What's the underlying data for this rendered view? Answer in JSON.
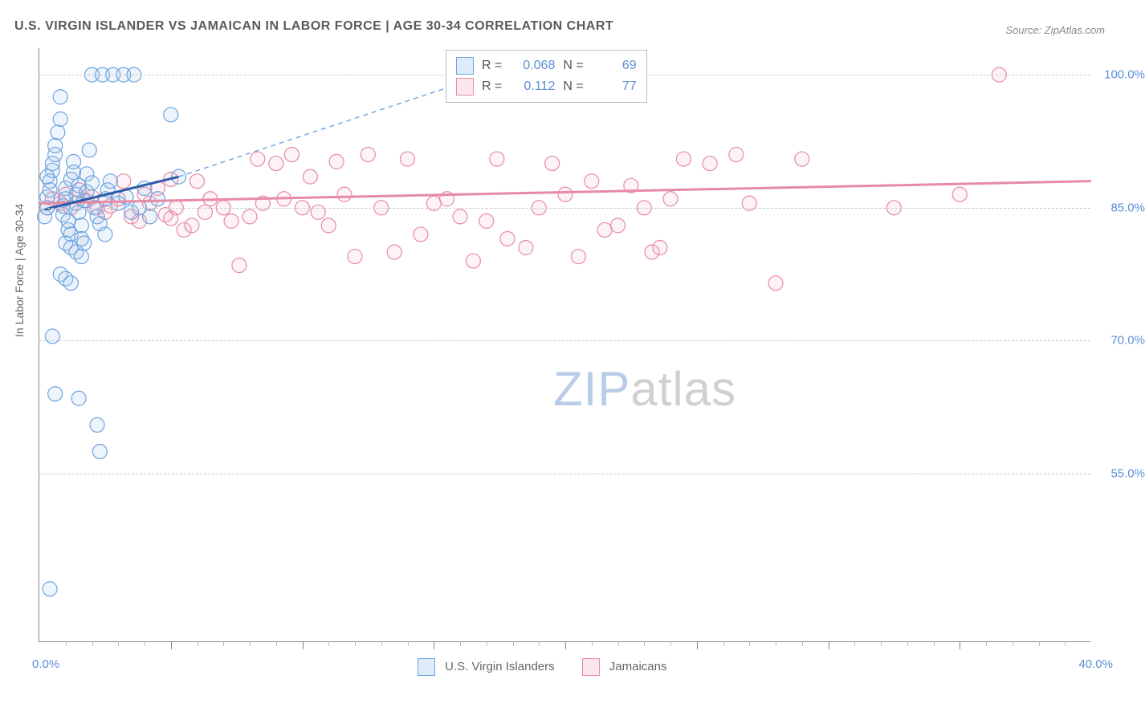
{
  "title": "U.S. VIRGIN ISLANDER VS JAMAICAN IN LABOR FORCE | AGE 30-34 CORRELATION CHART",
  "source": "Source: ZipAtlas.com",
  "ylabel": "In Labor Force | Age 30-34",
  "watermark_a": "ZIP",
  "watermark_b": "atlas",
  "chart": {
    "type": "scatter-correlation",
    "xlim": [
      0.0,
      40.0
    ],
    "ylim": [
      36.0,
      103.0
    ],
    "xlabel_min": "0.0%",
    "xlabel_max": "40.0%",
    "yticks": [
      55.0,
      70.0,
      85.0,
      100.0
    ],
    "ytick_labels": [
      "55.0%",
      "70.0%",
      "85.0%",
      "100.0%"
    ],
    "xticks_major": [
      5,
      10,
      15,
      20,
      25,
      30,
      35
    ],
    "xticks_minor": [
      1,
      2,
      3,
      4,
      6,
      7,
      8,
      9,
      11,
      12,
      13,
      14,
      16,
      17,
      18,
      19,
      21,
      22,
      23,
      24,
      26,
      27,
      28,
      29,
      31,
      32,
      33,
      34,
      36,
      37,
      38,
      39
    ],
    "background_color": "#ffffff",
    "grid_color": "#cccccc",
    "axis_color": "#888888",
    "text_color": "#666666",
    "tick_label_color": "#5b8fd6",
    "marker_radius": 9,
    "marker_stroke_width": 1.2,
    "marker_fill_opacity": 0.18,
    "trend_line_width": 3,
    "trend_dash_width": 1.4
  },
  "series": {
    "usvi": {
      "label": "U.S. Virgin Islanders",
      "color_stroke": "#6ea3e0",
      "color_fill": "#9dc2ea",
      "r_label": "R =",
      "r_value": "0.068",
      "n_label": "N =",
      "n_value": "69",
      "trend_solid": {
        "x1": 0.2,
        "y1": 84.8,
        "x2": 5.3,
        "y2": 88.5
      },
      "trend_dash": {
        "x1": 5.3,
        "y1": 88.5,
        "x2": 17.0,
        "y2": 100.0
      },
      "points": [
        [
          0.2,
          84.0
        ],
        [
          0.3,
          85.0
        ],
        [
          0.3,
          86.2
        ],
        [
          0.4,
          87.0
        ],
        [
          0.4,
          88.0
        ],
        [
          0.5,
          89.2
        ],
        [
          0.5,
          90.0
        ],
        [
          0.6,
          91.0
        ],
        [
          0.6,
          92.0
        ],
        [
          0.7,
          93.5
        ],
        [
          0.8,
          95.0
        ],
        [
          0.8,
          97.5
        ],
        [
          0.9,
          84.2
        ],
        [
          0.9,
          85.2
        ],
        [
          1.0,
          86.0
        ],
        [
          1.0,
          87.2
        ],
        [
          1.1,
          83.5
        ],
        [
          1.1,
          82.5
        ],
        [
          1.2,
          82.0
        ],
        [
          1.2,
          88.2
        ],
        [
          1.3,
          89.0
        ],
        [
          1.3,
          90.2
        ],
        [
          1.4,
          85.5
        ],
        [
          1.4,
          86.5
        ],
        [
          1.5,
          87.5
        ],
        [
          1.5,
          84.5
        ],
        [
          1.6,
          83.0
        ],
        [
          1.6,
          81.5
        ],
        [
          1.7,
          81.0
        ],
        [
          1.7,
          85.8
        ],
        [
          1.8,
          86.8
        ],
        [
          1.8,
          88.8
        ],
        [
          1.9,
          91.5
        ],
        [
          2.0,
          100.0
        ],
        [
          2.0,
          87.8
        ],
        [
          2.1,
          85.0
        ],
        [
          2.2,
          84.0
        ],
        [
          2.3,
          83.2
        ],
        [
          2.4,
          100.0
        ],
        [
          2.5,
          86.0
        ],
        [
          2.5,
          82.0
        ],
        [
          2.6,
          87.0
        ],
        [
          2.7,
          88.0
        ],
        [
          2.8,
          100.0
        ],
        [
          3.0,
          85.5
        ],
        [
          3.2,
          100.0
        ],
        [
          3.3,
          86.2
        ],
        [
          3.5,
          84.5
        ],
        [
          3.6,
          100.0
        ],
        [
          3.8,
          85.0
        ],
        [
          4.0,
          87.2
        ],
        [
          4.2,
          84.0
        ],
        [
          4.5,
          86.0
        ],
        [
          5.0,
          95.5
        ],
        [
          5.3,
          88.5
        ],
        [
          0.5,
          70.5
        ],
        [
          0.6,
          64.0
        ],
        [
          0.8,
          77.5
        ],
        [
          1.0,
          77.0
        ],
        [
          1.2,
          76.5
        ],
        [
          1.5,
          63.5
        ],
        [
          2.2,
          60.5
        ],
        [
          2.3,
          57.5
        ],
        [
          0.4,
          42.0
        ],
        [
          1.0,
          81.0
        ],
        [
          1.2,
          80.5
        ],
        [
          1.4,
          80.0
        ],
        [
          1.6,
          79.5
        ],
        [
          0.3,
          88.5
        ]
      ]
    },
    "jam": {
      "label": "Jamaicans",
      "color_stroke": "#e68aa5",
      "color_fill": "#f2b6c7",
      "r_label": "R =",
      "r_value": "0.112",
      "n_label": "N =",
      "n_value": "77",
      "trend_solid": {
        "x1": 0.0,
        "y1": 85.5,
        "x2": 40.0,
        "y2": 88.0
      },
      "points": [
        [
          0.3,
          85.0
        ],
        [
          0.5,
          86.0
        ],
        [
          0.8,
          85.5
        ],
        [
          1.0,
          86.5
        ],
        [
          1.2,
          85.0
        ],
        [
          1.5,
          87.0
        ],
        [
          1.8,
          85.8
        ],
        [
          2.0,
          86.2
        ],
        [
          2.2,
          85.0
        ],
        [
          2.5,
          84.5
        ],
        [
          2.7,
          85.2
        ],
        [
          3.0,
          86.0
        ],
        [
          3.2,
          88.0
        ],
        [
          3.5,
          84.0
        ],
        [
          3.8,
          83.5
        ],
        [
          4.0,
          86.5
        ],
        [
          4.2,
          85.5
        ],
        [
          4.5,
          87.2
        ],
        [
          4.8,
          84.2
        ],
        [
          5.0,
          83.8
        ],
        [
          5.2,
          85.0
        ],
        [
          5.5,
          82.5
        ],
        [
          5.8,
          83.0
        ],
        [
          6.0,
          88.0
        ],
        [
          6.3,
          84.5
        ],
        [
          6.5,
          86.0
        ],
        [
          7.0,
          85.0
        ],
        [
          7.3,
          83.5
        ],
        [
          7.6,
          78.5
        ],
        [
          8.0,
          84.0
        ],
        [
          8.3,
          90.5
        ],
        [
          8.5,
          85.5
        ],
        [
          9.0,
          90.0
        ],
        [
          9.3,
          86.0
        ],
        [
          9.6,
          91.0
        ],
        [
          10.0,
          85.0
        ],
        [
          10.3,
          88.5
        ],
        [
          10.6,
          84.5
        ],
        [
          11.0,
          83.0
        ],
        [
          11.3,
          90.2
        ],
        [
          11.6,
          86.5
        ],
        [
          12.0,
          79.5
        ],
        [
          12.5,
          91.0
        ],
        [
          13.0,
          85.0
        ],
        [
          13.5,
          80.0
        ],
        [
          14.0,
          90.5
        ],
        [
          14.5,
          82.0
        ],
        [
          15.0,
          85.5
        ],
        [
          15.5,
          86.0
        ],
        [
          16.0,
          84.0
        ],
        [
          16.5,
          79.0
        ],
        [
          17.0,
          83.5
        ],
        [
          17.4,
          90.5
        ],
        [
          17.8,
          81.5
        ],
        [
          18.5,
          80.5
        ],
        [
          19.0,
          85.0
        ],
        [
          19.5,
          90.0
        ],
        [
          20.0,
          86.5
        ],
        [
          20.5,
          79.5
        ],
        [
          21.0,
          88.0
        ],
        [
          21.5,
          82.5
        ],
        [
          22.0,
          83.0
        ],
        [
          22.5,
          87.5
        ],
        [
          23.0,
          85.0
        ],
        [
          23.3,
          80.0
        ],
        [
          23.6,
          80.5
        ],
        [
          24.0,
          86.0
        ],
        [
          24.5,
          90.5
        ],
        [
          25.5,
          90.0
        ],
        [
          26.5,
          91.0
        ],
        [
          27.0,
          85.5
        ],
        [
          28.0,
          76.5
        ],
        [
          29.0,
          90.5
        ],
        [
          32.5,
          85.0
        ],
        [
          35.0,
          86.5
        ],
        [
          36.5,
          100.0
        ],
        [
          5.0,
          88.2
        ]
      ]
    }
  }
}
